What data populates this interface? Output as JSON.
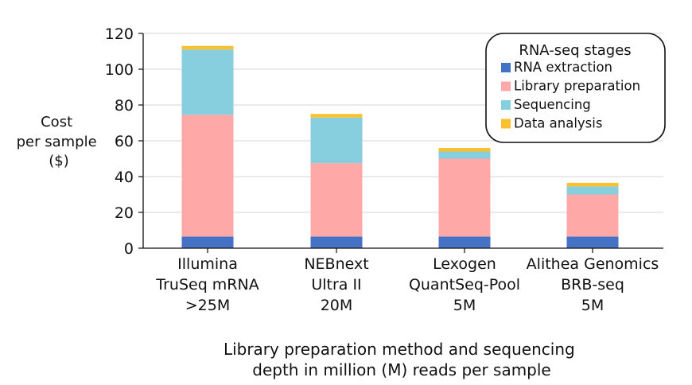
{
  "chart_data": {
    "type": "bar",
    "stacked": true,
    "categories": [
      [
        "Illumina",
        "TruSeq mRNA",
        ">25M"
      ],
      [
        "NEBnext",
        "Ultra II",
        "20M"
      ],
      [
        "Lexogen",
        "QuantSeq-Pool",
        "5M"
      ],
      [
        "Alithea Genomics",
        "BRB-seq",
        "5M"
      ]
    ],
    "series": [
      {
        "name": "RNA extraction",
        "color": "#4472c4",
        "values": [
          6.5,
          6.5,
          6.5,
          6.5
        ]
      },
      {
        "name": "Library preparation",
        "color": "#ffa8a8",
        "values": [
          68,
          41,
          43.5,
          23.5
        ]
      },
      {
        "name": "Sequencing",
        "color": "#87cede",
        "values": [
          36.5,
          25.5,
          4,
          4.5
        ]
      },
      {
        "name": "Data analysis",
        "color": "#fbc02d",
        "values": [
          2,
          2,
          2,
          2
        ]
      }
    ],
    "ylim": [
      0,
      120
    ],
    "yticks": [
      "0",
      "20",
      "40",
      "60",
      "80",
      "100",
      "120"
    ],
    "ylabel": [
      "Cost",
      "per sample",
      "($)"
    ],
    "xlabel": [
      "Library preparation method and sequencing",
      "depth in million (M) reads per sample"
    ],
    "legend_title": "RNA-seq stages",
    "legend_position": "top-right",
    "grid": "horizontal"
  }
}
